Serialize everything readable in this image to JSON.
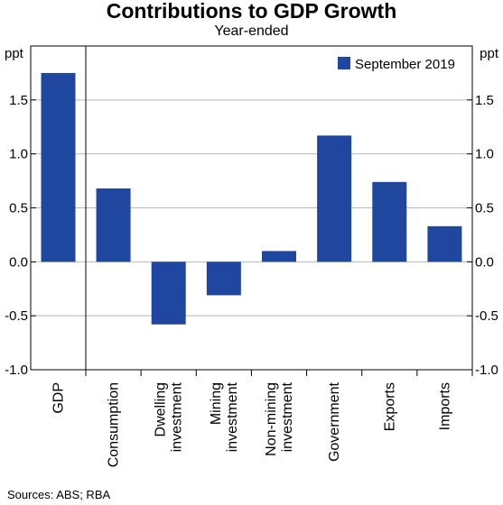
{
  "title": "Contributions to GDP Growth",
  "subtitle": "Year-ended",
  "source": "Sources: ABS; RBA",
  "chart_data": {
    "type": "bar",
    "title": "Contributions to GDP Growth",
    "subtitle": "Year-ended",
    "ylabel": "ppt",
    "ylim": [
      -1.0,
      2.0
    ],
    "yticks": [
      "-1.0",
      "-0.5",
      "0.0",
      "0.5",
      "1.0",
      "1.5"
    ],
    "ytick_values": [
      -1.0,
      -0.5,
      0.0,
      0.5,
      1.0,
      1.5
    ],
    "categories": [
      [
        "GDP"
      ],
      [
        "Consumption"
      ],
      [
        "Dwelling",
        "investment"
      ],
      [
        "Mining",
        "investment"
      ],
      [
        "Non-mining",
        "investment"
      ],
      [
        "Government"
      ],
      [
        "Exports"
      ],
      [
        "Imports"
      ]
    ],
    "series": [
      {
        "name": "September 2019",
        "color": "#1f47a0",
        "values": [
          1.75,
          0.68,
          -0.58,
          -0.31,
          0.1,
          1.17,
          0.74,
          0.33
        ]
      }
    ],
    "legend": "top-right",
    "grid": true
  }
}
